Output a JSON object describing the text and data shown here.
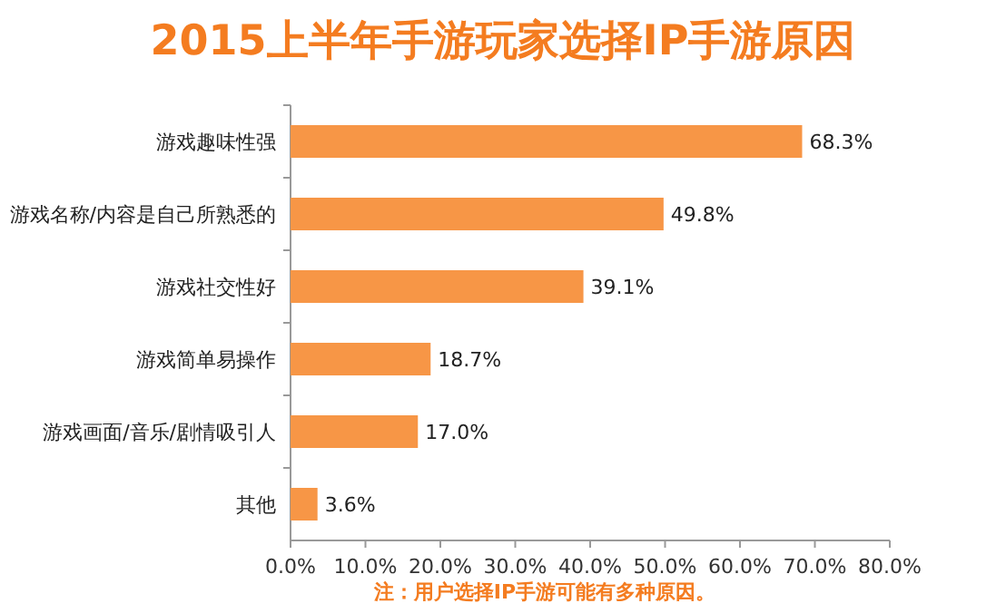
{
  "chart_data": {
    "type": "bar",
    "orientation": "horizontal",
    "title": "2015上半年手游玩家选择IP手游原因",
    "categories": [
      "游戏趣味性强",
      "游戏名称/内容是自己所熟悉的",
      "游戏社交性好",
      "游戏简单易操作",
      "游戏画面/音乐/剧情吸引人",
      "其他"
    ],
    "values": [
      68.3,
      49.8,
      39.1,
      18.7,
      17.0,
      3.6
    ],
    "value_labels": [
      "68.3%",
      "49.8%",
      "39.1%",
      "18.7%",
      "17.0%",
      "3.6%"
    ],
    "color": "#f79646",
    "xlim": [
      0,
      80
    ],
    "xticks": [
      {
        "value": 0,
        "label": "0.0%"
      },
      {
        "value": 10,
        "label": "10.0%"
      },
      {
        "value": 20,
        "label": "20.0%"
      },
      {
        "value": 30,
        "label": "30.0%"
      },
      {
        "value": 40,
        "label": "40.0%"
      },
      {
        "value": 50,
        "label": "50.0%"
      },
      {
        "value": 60,
        "label": "60.0%"
      },
      {
        "value": 70,
        "label": "70.0%"
      },
      {
        "value": 80,
        "label": "80.0%"
      }
    ],
    "annotations": [
      "注：用户选择IP手游可能有多种原因。"
    ]
  }
}
